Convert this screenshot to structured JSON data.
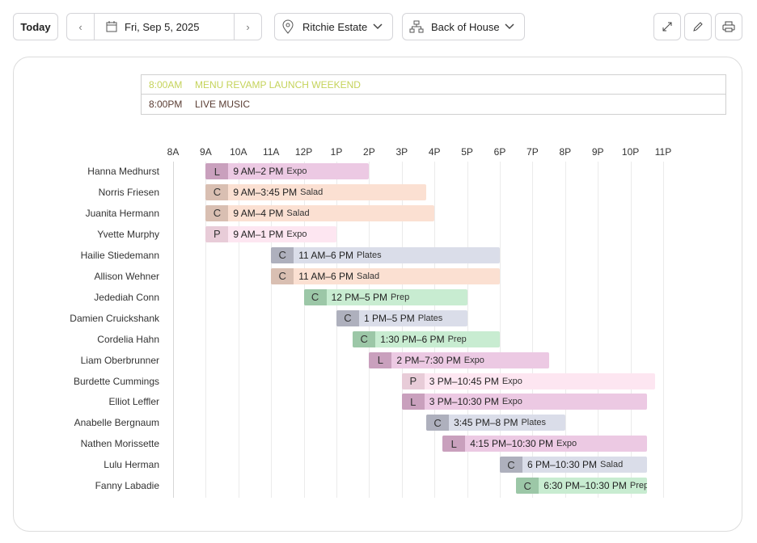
{
  "toolbar": {
    "today": "Today",
    "date": "Fri, Sep 5, 2025",
    "location": "Ritchie Estate",
    "department": "Back of House"
  },
  "events": [
    {
      "time": "8:00AM",
      "title": "MENU REVAMP LAUNCH WEEKEND",
      "color": "#c5d35a"
    },
    {
      "time": "8:00PM",
      "title": "LIVE MUSIC",
      "color": "#5a3d33"
    }
  ],
  "timeline": {
    "xlim": [
      8,
      23
    ],
    "hours": [
      {
        "value": 8,
        "label": "8A"
      },
      {
        "value": 9,
        "label": "9A"
      },
      {
        "value": 10,
        "label": "10A"
      },
      {
        "value": 11,
        "label": "11A"
      },
      {
        "value": 12,
        "label": "12P"
      },
      {
        "value": 13,
        "label": "1P"
      },
      {
        "value": 14,
        "label": "2P"
      },
      {
        "value": 15,
        "label": "3P"
      },
      {
        "value": 16,
        "label": "4P"
      },
      {
        "value": 17,
        "label": "5P"
      },
      {
        "value": 18,
        "label": "6P"
      },
      {
        "value": 19,
        "label": "7P"
      },
      {
        "value": 20,
        "label": "8P"
      },
      {
        "value": 21,
        "label": "9P"
      },
      {
        "value": 22,
        "label": "10P"
      },
      {
        "value": 23,
        "label": "11P"
      }
    ]
  },
  "shifts": [
    {
      "name": "Hanna Medhurst",
      "badge": "L",
      "time": "9 AM–2 PM",
      "role": "Expo",
      "start": 9,
      "end": 14,
      "color": "#ecc9e3",
      "badge_color": "#c9a0bd"
    },
    {
      "name": "Norris Friesen",
      "badge": "C",
      "time": "9 AM–3:45 PM",
      "role": "Salad",
      "start": 9,
      "end": 15.75,
      "color": "#fbe0d2",
      "badge_color": "#d9bfb2"
    },
    {
      "name": "Juanita Hermann",
      "badge": "C",
      "time": "9 AM–4 PM",
      "role": "Salad",
      "start": 9,
      "end": 16,
      "color": "#fbe0d2",
      "badge_color": "#d9bfb2"
    },
    {
      "name": "Yvette Murphy",
      "badge": "P",
      "time": "9 AM–1 PM",
      "role": "Expo",
      "start": 9,
      "end": 13,
      "color": "#fde6f1",
      "badge_color": "#e8ccd8"
    },
    {
      "name": "Hailie Stiedemann",
      "badge": "C",
      "time": "11 AM–6 PM",
      "role": "Plates",
      "start": 11,
      "end": 18,
      "color": "#dadde9",
      "badge_color": "#aeb0bd"
    },
    {
      "name": "Allison Wehner",
      "badge": "C",
      "time": "11 AM–6 PM",
      "role": "Salad",
      "start": 11,
      "end": 18,
      "color": "#fbe0d2",
      "badge_color": "#d9bfb2"
    },
    {
      "name": "Jedediah Conn",
      "badge": "C",
      "time": "12 PM–5 PM",
      "role": "Prep",
      "start": 12,
      "end": 17,
      "color": "#c8ecd1",
      "badge_color": "#9cc7a7"
    },
    {
      "name": "Damien Cruickshank",
      "badge": "C",
      "time": "1 PM–5 PM",
      "role": "Plates",
      "start": 13,
      "end": 17,
      "color": "#dadde9",
      "badge_color": "#aeb0bd"
    },
    {
      "name": "Cordelia Hahn",
      "badge": "C",
      "time": "1:30 PM–6 PM",
      "role": "Prep",
      "start": 13.5,
      "end": 18,
      "color": "#c8ecd1",
      "badge_color": "#9cc7a7"
    },
    {
      "name": "Liam Oberbrunner",
      "badge": "L",
      "time": "2 PM–7:30 PM",
      "role": "Expo",
      "start": 14,
      "end": 19.5,
      "color": "#ecc9e3",
      "badge_color": "#c9a0bd"
    },
    {
      "name": "Burdette Cummings",
      "badge": "P",
      "time": "3 PM–10:45 PM",
      "role": "Expo",
      "start": 15,
      "end": 22.75,
      "color": "#fde6f1",
      "badge_color": "#e8ccd8"
    },
    {
      "name": "Elliot Leffler",
      "badge": "L",
      "time": "3 PM–10:30 PM",
      "role": "Expo",
      "start": 15,
      "end": 22.5,
      "color": "#ecc9e3",
      "badge_color": "#c9a0bd"
    },
    {
      "name": "Anabelle Bergnaum",
      "badge": "C",
      "time": "3:45 PM–8 PM",
      "role": "Plates",
      "start": 15.75,
      "end": 20,
      "color": "#dadde9",
      "badge_color": "#aeb0bd"
    },
    {
      "name": "Nathen Morissette",
      "badge": "L",
      "time": "4:15 PM–10:30 PM",
      "role": "Expo",
      "start": 16.25,
      "end": 22.5,
      "color": "#ecc9e3",
      "badge_color": "#c9a0bd"
    },
    {
      "name": "Lulu Herman",
      "badge": "C",
      "time": "6 PM–10:30 PM",
      "role": "Salad",
      "start": 18,
      "end": 22.5,
      "color": "#dadde9",
      "badge_color": "#aeb0bd"
    },
    {
      "name": "Fanny Labadie",
      "badge": "C",
      "time": "6:30 PM–10:30 PM",
      "role": "Prep",
      "start": 18.5,
      "end": 22.5,
      "color": "#c8ecd1",
      "badge_color": "#9cc7a7"
    }
  ]
}
